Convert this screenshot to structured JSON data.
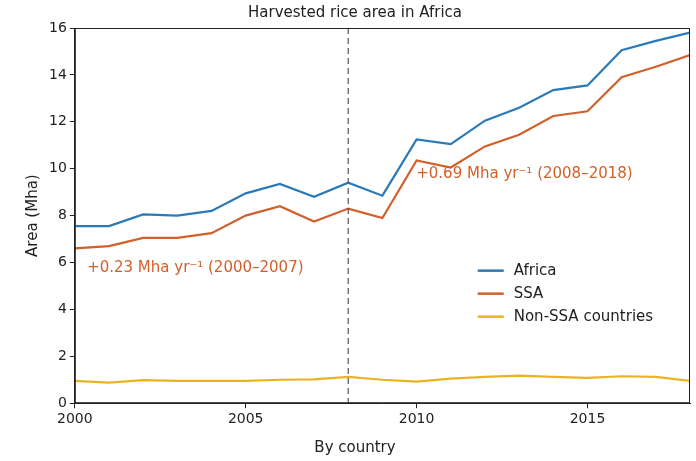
{
  "chart_data": {
    "type": "line",
    "title": "Harvested rice area in Africa",
    "y_label": "Area (Mha)",
    "footer": "By country",
    "x": [
      2000,
      2001,
      2002,
      2003,
      2004,
      2005,
      2006,
      2007,
      2008,
      2009,
      2010,
      2011,
      2012,
      2013,
      2014,
      2015,
      2016,
      2017,
      2018
    ],
    "series": [
      {
        "name": "Africa",
        "color": "#2a7ab9",
        "values": [
          7.55,
          7.55,
          8.05,
          8.0,
          8.2,
          8.95,
          9.35,
          8.8,
          9.4,
          8.85,
          11.25,
          11.05,
          12.05,
          12.6,
          13.35,
          13.55,
          15.05,
          15.45,
          15.8
        ]
      },
      {
        "name": "SSA",
        "color": "#d2602a",
        "values": [
          6.6,
          6.7,
          7.05,
          7.05,
          7.25,
          8.0,
          8.4,
          7.75,
          8.3,
          7.9,
          10.35,
          10.05,
          10.95,
          11.45,
          12.25,
          12.45,
          13.9,
          14.35,
          14.85
        ]
      },
      {
        "name": "Non-SSA countries",
        "color": "#e8b521",
        "values": [
          0.95,
          0.88,
          0.98,
          0.95,
          0.95,
          0.95,
          1.0,
          1.02,
          1.12,
          1.0,
          0.92,
          1.05,
          1.12,
          1.18,
          1.12,
          1.08,
          1.15,
          1.12,
          0.95
        ]
      }
    ],
    "xlim": [
      2000,
      2018
    ],
    "xticks": [
      2000,
      2005,
      2010,
      2015
    ],
    "ylim": [
      0,
      16
    ],
    "yticks": [
      0,
      2,
      4,
      6,
      8,
      10,
      12,
      14,
      16
    ],
    "reference_line": {
      "x": 2008,
      "line_style": "dashed"
    },
    "annotations": [
      {
        "text": "+0.23 Mha yr⁻¹ (2000–2007)",
        "color": "#d2602a"
      },
      {
        "text": "+0.69 Mha yr⁻¹ (2008–2018)",
        "color": "#d2602a"
      }
    ],
    "legend": "lower right",
    "grid": false
  }
}
